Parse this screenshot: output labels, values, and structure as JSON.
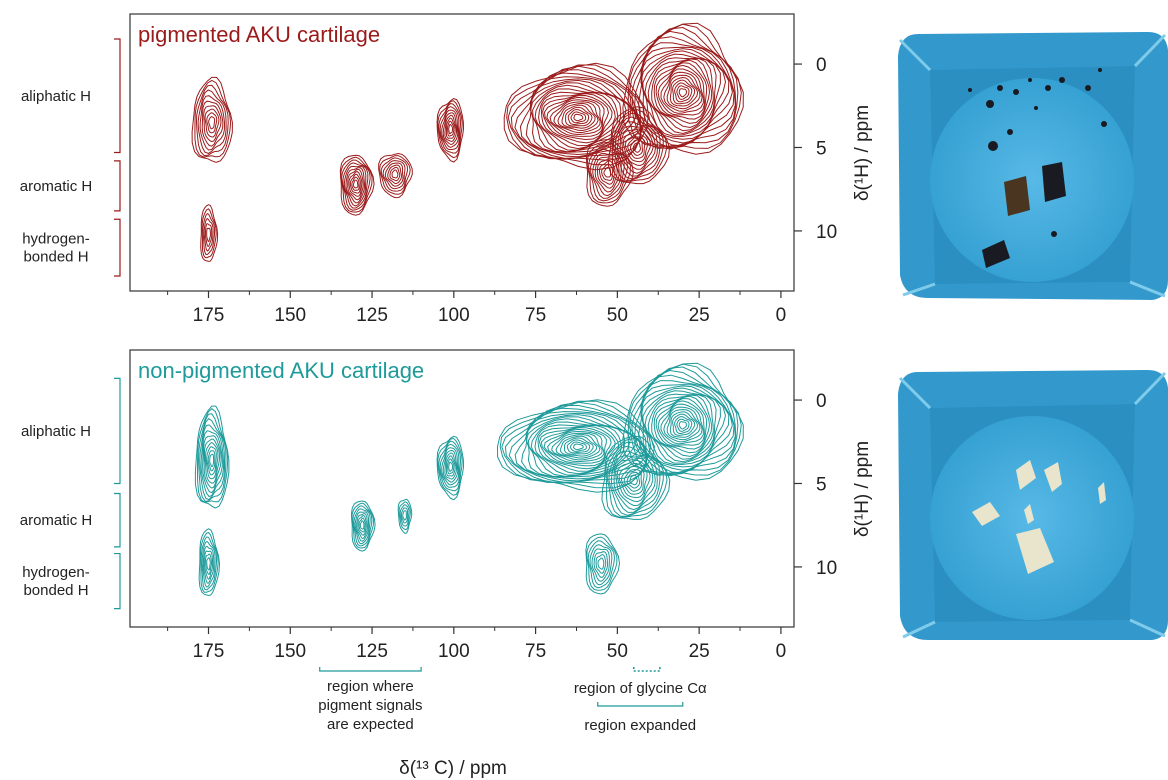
{
  "chart_data": {
    "type": "contour",
    "x_label": "δ(¹³ C) / ppm",
    "y_label": "δ(¹H) / ppm",
    "x_ticks": [
      175,
      150,
      125,
      100,
      75,
      50,
      25,
      0
    ],
    "y_ticks": [
      0,
      5,
      10
    ],
    "xlim": [
      199,
      -4
    ],
    "ylim": [
      -3,
      13.6
    ],
    "panels": [
      {
        "title": "pigmented AKU cartilage",
        "color": "#9b1b1b",
        "ranges": [
          {
            "label": "aliphatic H",
            "y0": -1.5,
            "y1": 5.3
          },
          {
            "label": "aromatic H",
            "y0": 5.8,
            "y1": 8.8
          },
          {
            "label": "hydrogen-\nbonded H",
            "y0": 9.3,
            "y1": 12.7
          }
        ],
        "peaks": [
          {
            "x": 174,
            "y": 3.5,
            "rx": 6,
            "ry": 2.5,
            "levels": 10
          },
          {
            "x": 175,
            "y": 10.2,
            "rx": 2.5,
            "ry": 1.7,
            "levels": 6
          },
          {
            "x": 130,
            "y": 7.2,
            "rx": 5,
            "ry": 1.8,
            "levels": 11
          },
          {
            "x": 118,
            "y": 6.6,
            "rx": 5,
            "ry": 1.3,
            "levels": 8
          },
          {
            "x": 101,
            "y": 3.9,
            "rx": 4,
            "ry": 1.8,
            "levels": 10
          },
          {
            "x": 62,
            "y": 3.2,
            "rx": 22,
            "ry": 3.0,
            "levels": 24
          },
          {
            "x": 30,
            "y": 1.7,
            "rx": 18,
            "ry": 3.8,
            "levels": 24
          },
          {
            "x": 44,
            "y": 5.0,
            "rx": 9,
            "ry": 2.3,
            "levels": 12
          },
          {
            "x": 53,
            "y": 6.5,
            "rx": 7,
            "ry": 2.0,
            "levels": 10
          }
        ]
      },
      {
        "title": "non-pigmented AKU cartilage",
        "color": "#1e9a9a",
        "ranges": [
          {
            "label": "aliphatic H",
            "y0": -1.3,
            "y1": 5.0
          },
          {
            "label": "aromatic H",
            "y0": 5.6,
            "y1": 8.8
          },
          {
            "label": "hydrogen-\nbonded H",
            "y0": 9.2,
            "y1": 12.5
          }
        ],
        "peaks": [
          {
            "x": 174,
            "y": 3.6,
            "rx": 5,
            "ry": 3.0,
            "levels": 12
          },
          {
            "x": 175,
            "y": 9.8,
            "rx": 3,
            "ry": 2.0,
            "levels": 8
          },
          {
            "x": 128,
            "y": 7.5,
            "rx": 3.5,
            "ry": 1.5,
            "levels": 9
          },
          {
            "x": 115,
            "y": 6.9,
            "rx": 2,
            "ry": 1.0,
            "levels": 5
          },
          {
            "x": 101,
            "y": 4.0,
            "rx": 4,
            "ry": 1.8,
            "levels": 10
          },
          {
            "x": 62,
            "y": 2.8,
            "rx": 24,
            "ry": 2.6,
            "levels": 24
          },
          {
            "x": 30,
            "y": 1.5,
            "rx": 18,
            "ry": 3.4,
            "levels": 24
          },
          {
            "x": 45,
            "y": 4.8,
            "rx": 10,
            "ry": 2.5,
            "levels": 13
          },
          {
            "x": 55,
            "y": 9.8,
            "rx": 5,
            "ry": 1.8,
            "levels": 8
          }
        ]
      }
    ]
  },
  "annotations": {
    "pigment_region": {
      "label": "region where\npigment signals\nare expected",
      "x0": 141,
      "x1": 110
    },
    "glycine_region": {
      "label": "region of glycine Cα",
      "x0": 45,
      "x1": 37
    },
    "expanded_region": {
      "label": "region expanded",
      "x0": 56,
      "x1": 30
    }
  },
  "photos": [
    {
      "name": "pigmented-sample-photo",
      "color": "#3fa6d4"
    },
    {
      "name": "non-pigmented-sample-photo",
      "color": "#3fa6d4"
    }
  ]
}
